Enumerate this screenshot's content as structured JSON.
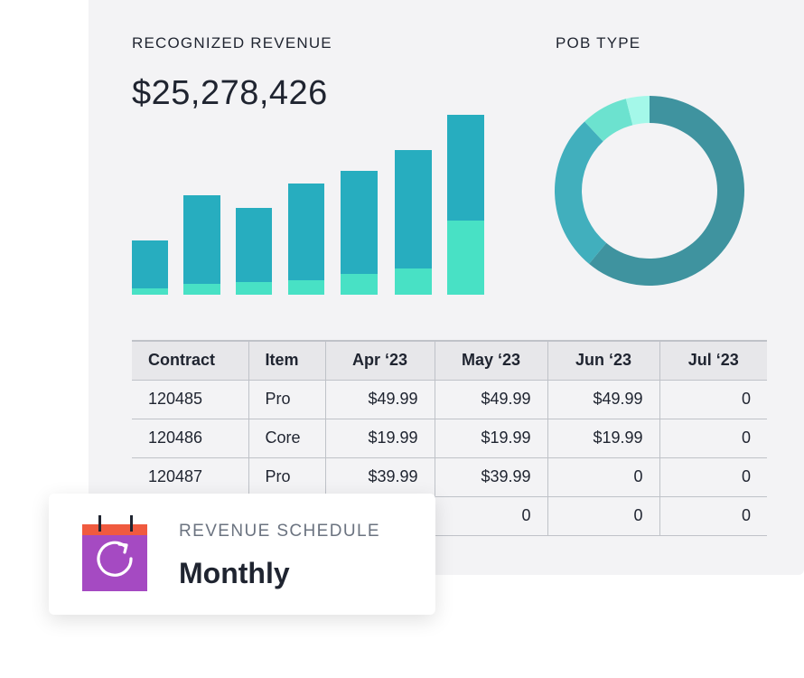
{
  "revenue": {
    "label": "RECOGNIZED REVENUE",
    "total": "$25,278,426"
  },
  "pob": {
    "label": "POB TYPE"
  },
  "colors": {
    "bar_top": "#27adbf",
    "bar_bottom": "#48e1c5",
    "donut": [
      "#3f939f",
      "#41afbd",
      "#6ce2cf",
      "#a4f8e9"
    ]
  },
  "chart_data": [
    {
      "type": "bar",
      "stacked": true,
      "categories": [
        "",
        "",
        "",
        "",
        "",
        "",
        ""
      ],
      "series": [
        {
          "values": [
            7,
            12,
            14,
            16,
            23,
            29,
            82
          ]
        },
        {
          "values": [
            53,
            98,
            82,
            107,
            114,
            131,
            117
          ]
        }
      ],
      "ylim": [
        0,
        200
      ],
      "grid": false
    },
    {
      "type": "pie",
      "donut": true,
      "values": [
        61,
        27,
        8,
        4
      ]
    }
  ],
  "table": {
    "headers": [
      "Contract",
      "Item",
      "Apr ‘23",
      "May ‘23",
      "Jun ‘23",
      "Jul ‘23"
    ],
    "rows": [
      [
        "120485",
        "Pro",
        "$49.99",
        "$49.99",
        "$49.99",
        "0"
      ],
      [
        "120486",
        "Core",
        "$19.99",
        "$19.99",
        "$19.99",
        "0"
      ],
      [
        "120487",
        "Pro",
        "$39.99",
        "$39.99",
        "0",
        "0"
      ],
      [
        "",
        "",
        "",
        "0",
        "0",
        "0"
      ]
    ]
  },
  "card": {
    "label": "REVENUE SCHEDULE",
    "value": "Monthly",
    "icon": "calendar-refresh-icon"
  }
}
